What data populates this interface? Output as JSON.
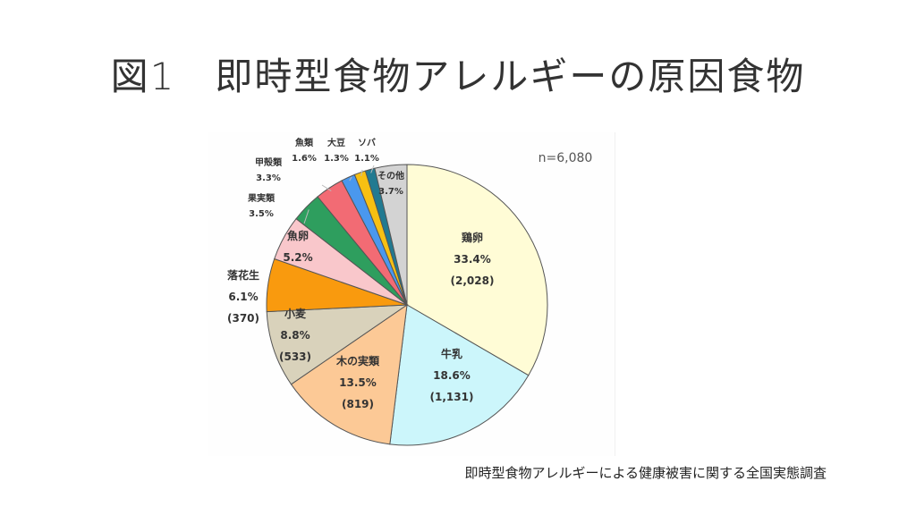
{
  "title": "図1　即時型食物アレルギーの原因食物",
  "source": "即時型食物アレルギーによる健康被害に関する全国実態調査",
  "chart_data": {
    "type": "pie",
    "start": "12 o'clock, clockwise",
    "annotation": "n=6,080",
    "slices": [
      {
        "label": "鶏卵",
        "percent": 33.4,
        "percent_label": "33.4%",
        "count_label": "(2,028)",
        "color": "#fffcd6"
      },
      {
        "label": "牛乳",
        "percent": 18.6,
        "percent_label": "18.6%",
        "count_label": "(1,131)",
        "color": "#ccf6fb"
      },
      {
        "label": "木の実類",
        "percent": 13.5,
        "percent_label": "13.5%",
        "count_label": "(819)",
        "color": "#fcc996"
      },
      {
        "label": "小麦",
        "percent": 8.8,
        "percent_label": "8.8%",
        "count_label": "(533)",
        "color": "#d9d2bb"
      },
      {
        "label": "落花生",
        "percent": 6.1,
        "percent_label": "6.1%",
        "count_label": "(370)",
        "color": "#f99a0e"
      },
      {
        "label": "魚卵",
        "percent": 5.2,
        "percent_label": "5.2%",
        "count_label": "",
        "color": "#f9c7cb"
      },
      {
        "label": "果実類",
        "percent": 3.5,
        "percent_label": "3.5%",
        "count_label": "",
        "color": "#2e9e5e"
      },
      {
        "label": "甲殻類",
        "percent": 3.3,
        "percent_label": "3.3%",
        "count_label": "",
        "color": "#f26b74"
      },
      {
        "label": "魚類",
        "percent": 1.6,
        "percent_label": "1.6%",
        "count_label": "",
        "color": "#4a98ee"
      },
      {
        "label": "大豆",
        "percent": 1.3,
        "percent_label": "1.3%",
        "count_label": "",
        "color": "#f7c012"
      },
      {
        "label": "ソバ",
        "percent": 1.1,
        "percent_label": "1.1%",
        "count_label": "",
        "color": "#217a91"
      },
      {
        "label": "その他",
        "percent": 3.7,
        "percent_label": "3.7%",
        "count_label": "",
        "color": "#d3d3d3"
      }
    ]
  }
}
